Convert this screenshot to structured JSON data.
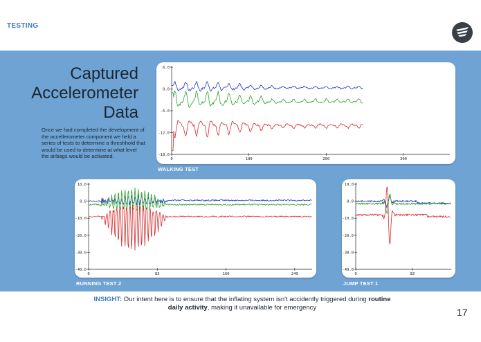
{
  "header": {
    "section_label": "TESTING"
  },
  "logo": {
    "icon": "airbag-logo-icon",
    "color": "#3a3f46"
  },
  "slide": {
    "title_lines": [
      "Captured",
      "Accelerometer",
      "Data"
    ],
    "intro": "Once we had completed the development of the accellerometer component we held a series of tests to determine a threshhold that would be used to determine at what level the airbags would be activated.",
    "insight_label": "INSIGHT:",
    "insight_text_1": " Our intent here is to ensure that the inflating system isn't accidently triggered during ",
    "insight_bold": "routine daily activity",
    "insight_text_2": ", making it unavailable for emergency",
    "page_number": "17"
  },
  "colors": {
    "band": "#6ea3d3",
    "accent": "#3f7bbf",
    "series_blue": "#1f2fbf",
    "series_green": "#2ca02c",
    "series_red": "#d62728"
  },
  "chart_data": [
    {
      "type": "line",
      "title": "WALKING TEST",
      "x_ticks": [
        "0",
        "100",
        "200",
        "300"
      ],
      "y_ticks": [
        "6.0",
        "0.0",
        "-6.0",
        "-12.0",
        "-18.0"
      ],
      "xlim": [
        0,
        360
      ],
      "ylim": [
        -18,
        6
      ],
      "series": [
        {
          "name": "blue",
          "pattern": "walk",
          "x_end": 248,
          "baseline": 0.3,
          "amp": 1.8,
          "period": 14,
          "noise": 0.5
        },
        {
          "name": "green",
          "pattern": "walk",
          "x_end": 248,
          "baseline": -3.5,
          "amp": 3.0,
          "period": 14,
          "noise": 0.7
        },
        {
          "name": "red",
          "pattern": "walk",
          "x_end": 248,
          "baseline": -10.0,
          "amp": 3.2,
          "period": 14,
          "noise": 0.6
        }
      ]
    },
    {
      "type": "line",
      "title": "RUNNING TEST 2",
      "x_ticks": [
        "0",
        "83",
        "166",
        "249"
      ],
      "y_ticks": [
        "10.0",
        "0.0",
        "-10.0",
        "-20.0",
        "-30.0",
        "-40.0"
      ],
      "xlim": [
        0,
        270
      ],
      "ylim": [
        -40,
        10
      ],
      "series": [
        {
          "name": "blue",
          "pattern": "run",
          "x_end": 270,
          "baseline": 0.0,
          "amp": 4.0,
          "period": 4,
          "burst": [
            14,
            95
          ]
        },
        {
          "name": "green",
          "pattern": "run",
          "x_end": 270,
          "baseline": -2.0,
          "amp": 12.0,
          "period": 4,
          "burst": [
            14,
            95
          ]
        },
        {
          "name": "red",
          "pattern": "run",
          "x_end": 270,
          "baseline": -9.0,
          "amp": 20.0,
          "period": 4,
          "burst": [
            14,
            95
          ]
        }
      ]
    },
    {
      "type": "line",
      "title": "JUMP TEST 1",
      "x_ticks": [
        "0",
        "83"
      ],
      "y_ticks": [
        "10.0",
        "0.0",
        "-10.0",
        "-20.0",
        "-30.0",
        "-40.0"
      ],
      "xlim": [
        0,
        140
      ],
      "ylim": [
        -40,
        10
      ],
      "series": [
        {
          "name": "blue",
          "pattern": "jump",
          "x_end": 140,
          "baseline": 0.0,
          "amp": 4.0,
          "burst": [
            38,
            60
          ]
        },
        {
          "name": "green",
          "pattern": "jump",
          "x_end": 140,
          "baseline": -1.5,
          "amp": 8.0,
          "burst": [
            38,
            60
          ]
        },
        {
          "name": "red",
          "pattern": "jump",
          "x_end": 140,
          "baseline": -8.0,
          "amp": 22.0,
          "burst": [
            38,
            60
          ]
        }
      ]
    }
  ]
}
